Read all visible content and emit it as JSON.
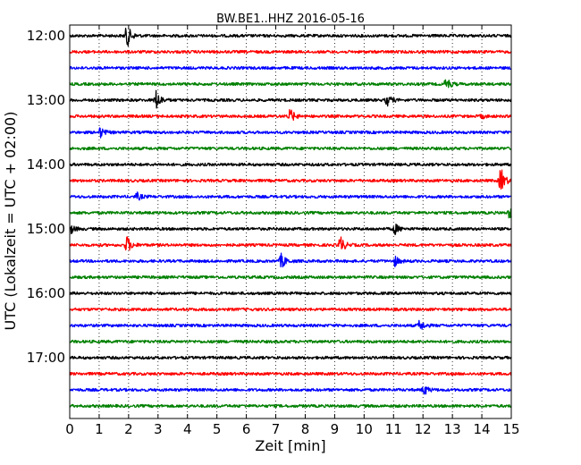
{
  "chart_data": {
    "type": "line",
    "title": "BW.BE1..HHZ 2016-05-16",
    "xlabel": "Zeit  [min]",
    "ylabel": "UTC (Lokalzeit = UTC + 02:00)",
    "xlim": [
      0,
      15
    ],
    "x_ticks": [
      "0",
      "1",
      "2",
      "3",
      "4",
      "5",
      "6",
      "7",
      "8",
      "9",
      "10",
      "11",
      "12",
      "13",
      "14",
      "15"
    ],
    "y_tick_labels": [
      "12:00",
      "13:00",
      "14:00",
      "15:00",
      "16:00",
      "17:00"
    ],
    "grid": {
      "vertical_dotted": true
    },
    "color_cycle": [
      "#000000",
      "#ff0000",
      "#0000ff",
      "#008000"
    ],
    "traces": [
      {
        "start": "12:00",
        "color": "#000000",
        "events": [
          {
            "t": 1.95,
            "amp": 1.0
          }
        ]
      },
      {
        "start": "12:15",
        "color": "#ff0000",
        "events": []
      },
      {
        "start": "12:30",
        "color": "#0000ff",
        "events": []
      },
      {
        "start": "12:45",
        "color": "#008000",
        "events": [
          {
            "t": 12.8,
            "amp": 0.55
          }
        ]
      },
      {
        "start": "13:00",
        "color": "#000000",
        "events": [
          {
            "t": 2.95,
            "amp": 0.85
          },
          {
            "t": 10.8,
            "amp": 0.45
          }
        ]
      },
      {
        "start": "13:15",
        "color": "#ff0000",
        "events": [
          {
            "t": 7.5,
            "amp": 0.6
          },
          {
            "t": 14.0,
            "amp": 0.15
          }
        ]
      },
      {
        "start": "13:30",
        "color": "#0000ff",
        "events": [
          {
            "t": 1.05,
            "amp": 0.4
          }
        ]
      },
      {
        "start": "13:45",
        "color": "#008000",
        "events": []
      },
      {
        "start": "14:00",
        "color": "#000000",
        "events": []
      },
      {
        "start": "14:15",
        "color": "#ff0000",
        "events": [
          {
            "t": 14.65,
            "amp": 1.1
          }
        ]
      },
      {
        "start": "14:30",
        "color": "#0000ff",
        "events": [
          {
            "t": 2.3,
            "amp": 0.3
          }
        ]
      },
      {
        "start": "14:45",
        "color": "#008000",
        "events": [
          {
            "t": 14.95,
            "amp": 0.45
          }
        ]
      },
      {
        "start": "15:00",
        "color": "#000000",
        "events": [
          {
            "t": 0.05,
            "amp": 0.35
          },
          {
            "t": 11.05,
            "amp": 0.45
          }
        ]
      },
      {
        "start": "15:15",
        "color": "#ff0000",
        "events": [
          {
            "t": 1.95,
            "amp": 0.75
          },
          {
            "t": 9.2,
            "amp": 0.75
          }
        ]
      },
      {
        "start": "15:30",
        "color": "#0000ff",
        "events": [
          {
            "t": 7.2,
            "amp": 0.65
          },
          {
            "t": 11.05,
            "amp": 0.4
          }
        ]
      },
      {
        "start": "15:45",
        "color": "#008000",
        "events": []
      },
      {
        "start": "16:00",
        "color": "#000000",
        "events": []
      },
      {
        "start": "16:15",
        "color": "#ff0000",
        "events": []
      },
      {
        "start": "16:30",
        "color": "#0000ff",
        "events": [
          {
            "t": 11.9,
            "amp": 0.45
          }
        ]
      },
      {
        "start": "16:45",
        "color": "#008000",
        "events": []
      },
      {
        "start": "17:00",
        "color": "#000000",
        "events": []
      },
      {
        "start": "17:15",
        "color": "#ff0000",
        "events": []
      },
      {
        "start": "17:30",
        "color": "#0000ff",
        "events": [
          {
            "t": 12.05,
            "amp": 0.4
          }
        ]
      },
      {
        "start": "17:45",
        "color": "#008000",
        "events": []
      }
    ]
  }
}
